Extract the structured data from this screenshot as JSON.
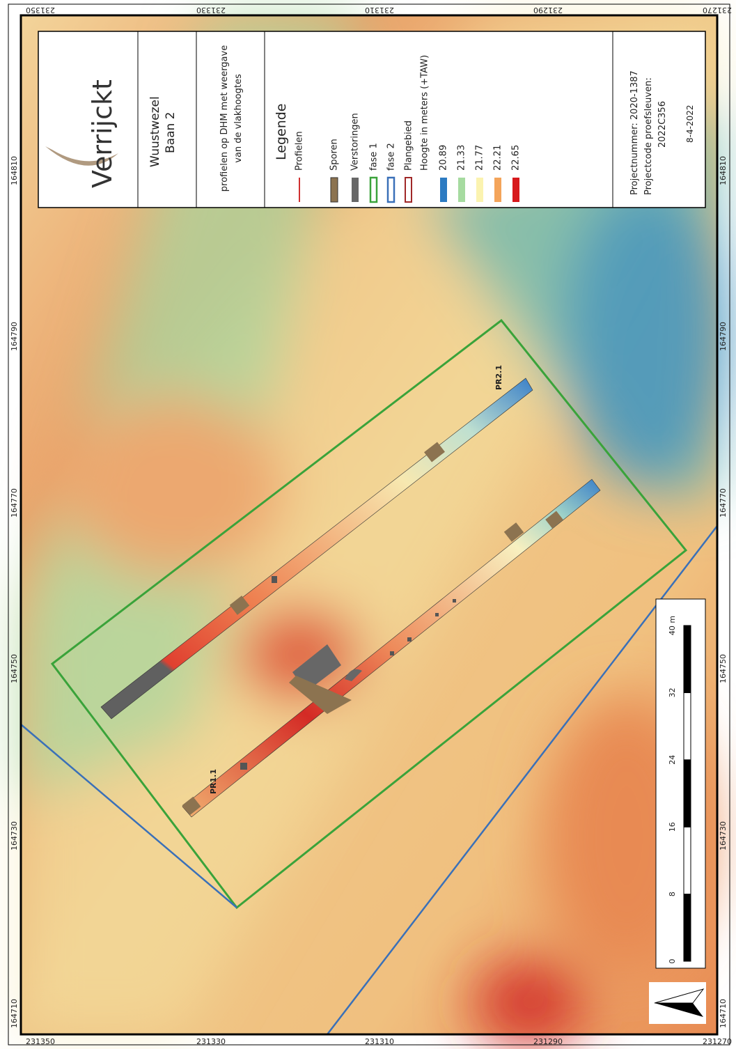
{
  "grid": {
    "northing": [
      "231350",
      "231330",
      "231310",
      "231290",
      "231270"
    ],
    "easting": [
      "164810",
      "164790",
      "164770",
      "164750",
      "164730",
      "164710"
    ]
  },
  "title_block": {
    "logo": "Verrijckt",
    "site": "Wuustwezel",
    "trench": "Baan 2",
    "description": [
      "profielen op DHM met weergave",
      "van de vlakhoogtes"
    ]
  },
  "legend": {
    "title": "Legende",
    "items": [
      "Profielen",
      "Sporen",
      "Verstoringen",
      "fase 1",
      "fase 2",
      "Plangebied"
    ],
    "height_title": "Hoogte in meters (+TAW)",
    "heights": [
      "20.89",
      "21.33",
      "21.77",
      "22.21",
      "22.65"
    ]
  },
  "project": {
    "number": "Projectnummer: 2020-1387",
    "code": [
      "Projectcode proefsleuven:",
      "2022C356"
    ],
    "date": "8-4-2022"
  },
  "scale_bar": {
    "ticks": [
      "0",
      "8",
      "16",
      "24",
      "32",
      "40 m"
    ]
  },
  "labels": [
    "PR1.1",
    "PR2.1"
  ]
}
